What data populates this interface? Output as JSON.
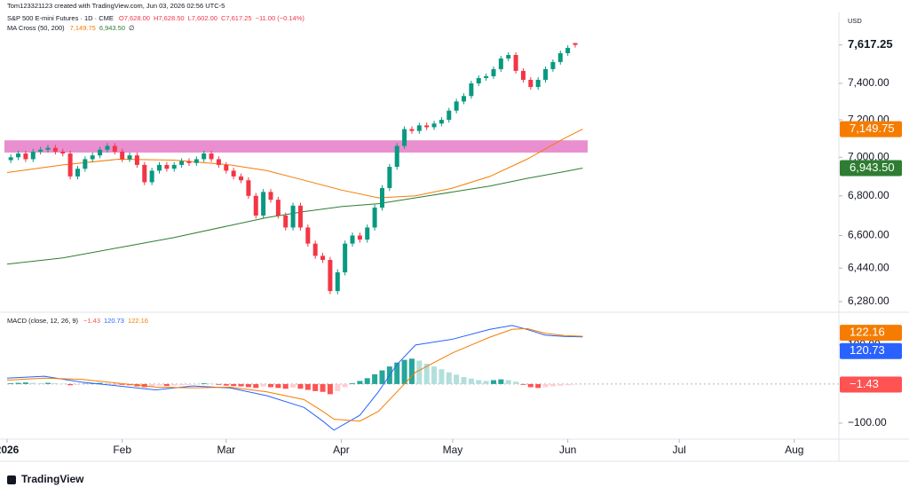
{
  "header": {
    "credit": "Tom123321123 created with TradingView.com, Jun 03, 2026 02:56 UTC-5",
    "symbol": "S&P 500 E-mini Futures · 1D · CME",
    "ohlc": [
      "O7,628.00",
      "H7,628.50",
      "L7,602.00",
      "C7,617.25",
      "−11.00 (−0.14%)"
    ],
    "logo": "TradingView"
  },
  "chart_data": [
    {
      "type": "candlestick",
      "currency": "USD",
      "log_scale": true,
      "xlim": [
        0,
        224
      ],
      "xticks": [
        {
          "value": 0,
          "label": "2026"
        },
        {
          "value": 31,
          "label": "Feb"
        },
        {
          "value": 59,
          "label": "Mar"
        },
        {
          "value": 90,
          "label": "Apr"
        },
        {
          "value": 120,
          "label": "May"
        },
        {
          "value": 151,
          "label": "Jun"
        },
        {
          "value": 181,
          "label": "Jul"
        },
        {
          "value": 212,
          "label": "Aug"
        }
      ],
      "ylim": [
        6230,
        7879
      ],
      "yticks": [
        {
          "value": 7617.25,
          "label": "7,617.25"
        },
        {
          "value": 7400,
          "label": "7,400.00"
        },
        {
          "value": 7200,
          "label": "7,200.00"
        },
        {
          "value": 7000,
          "label": "7,000.00"
        },
        {
          "value": 6800,
          "label": "6,800.00"
        },
        {
          "value": 6600,
          "label": "6,600.00"
        },
        {
          "value": 6440,
          "label": "6,440.00"
        },
        {
          "value": 6280,
          "label": "6,280.00"
        }
      ],
      "zone": {
        "from": 7025,
        "to": 7090,
        "color": "#e98fcf"
      },
      "candles": {
        "up_color": "#089981",
        "down_color": "#f23645",
        "x": [
          1,
          3,
          5,
          7,
          9,
          11,
          13,
          15,
          17,
          19,
          21,
          23,
          25,
          27,
          29,
          31,
          33,
          35,
          37,
          39,
          41,
          43,
          45,
          47,
          49,
          51,
          53,
          55,
          57,
          59,
          61,
          63,
          65,
          67,
          69,
          71,
          73,
          75,
          77,
          79,
          81,
          83,
          85,
          87,
          89,
          91,
          93,
          95,
          97,
          99,
          101,
          103,
          105,
          107,
          109,
          111,
          113,
          115,
          117,
          119,
          121,
          123,
          125,
          127,
          129,
          131,
          133,
          135,
          137,
          139,
          141,
          143,
          145,
          147,
          149,
          151,
          153
        ],
        "open": [
          6985,
          7000,
          7020,
          6990,
          7030,
          7040,
          7050,
          7030,
          7020,
          6900,
          6940,
          6990,
          7010,
          7040,
          7060,
          7030,
          6990,
          7010,
          6960,
          6870,
          6930,
          6960,
          6940,
          6960,
          6980,
          6970,
          6990,
          7020,
          6990,
          6960,
          6930,
          6900,
          6880,
          6800,
          6700,
          6820,
          6780,
          6700,
          6640,
          6750,
          6640,
          6560,
          6500,
          6480,
          6330,
          6420,
          6560,
          6600,
          6580,
          6640,
          6740,
          6840,
          6950,
          7060,
          7150,
          7140,
          7170,
          7160,
          7180,
          7200,
          7250,
          7300,
          7330,
          7400,
          7430,
          7440,
          7480,
          7540,
          7560,
          7470,
          7420,
          7380,
          7420,
          7480,
          7520,
          7570,
          7628
        ],
        "high": [
          7015,
          7035,
          7035,
          7045,
          7055,
          7065,
          7065,
          7045,
          7035,
          6955,
          7005,
          7025,
          7055,
          7075,
          7075,
          7045,
          7025,
          7025,
          6975,
          6945,
          6975,
          6975,
          6975,
          6995,
          6995,
          7005,
          7035,
          7035,
          7005,
          6975,
          6945,
          6915,
          6895,
          6815,
          6835,
          6835,
          6795,
          6715,
          6765,
          6765,
          6655,
          6575,
          6515,
          6495,
          6435,
          6575,
          6615,
          6615,
          6655,
          6755,
          6855,
          6965,
          7075,
          7165,
          7165,
          7185,
          7185,
          7195,
          7215,
          7265,
          7315,
          7345,
          7415,
          7445,
          7455,
          7495,
          7555,
          7575,
          7575,
          7485,
          7435,
          7435,
          7495,
          7535,
          7585,
          7615,
          7628.5
        ],
        "low": [
          6970,
          6985,
          6975,
          6975,
          7015,
          7025,
          7015,
          7005,
          6885,
          6885,
          6925,
          6975,
          6995,
          7025,
          7015,
          6975,
          6975,
          6945,
          6855,
          6855,
          6915,
          6925,
          6925,
          6945,
          6955,
          6955,
          6975,
          6975,
          6945,
          6915,
          6885,
          6865,
          6785,
          6685,
          6685,
          6765,
          6685,
          6625,
          6625,
          6625,
          6545,
          6485,
          6465,
          6315,
          6315,
          6405,
          6545,
          6565,
          6565,
          6625,
          6725,
          6825,
          6935,
          7045,
          7125,
          7125,
          7145,
          7145,
          7165,
          7185,
          7235,
          7285,
          7315,
          7385,
          7415,
          7425,
          7465,
          7525,
          7455,
          7405,
          7365,
          7365,
          7405,
          7465,
          7505,
          7555,
          7602
        ],
        "close": [
          7000,
          7020,
          6990,
          7030,
          7040,
          7050,
          7030,
          7020,
          6900,
          6940,
          6990,
          7010,
          7040,
          7060,
          7030,
          6990,
          7010,
          6960,
          6870,
          6930,
          6960,
          6940,
          6960,
          6980,
          6970,
          6990,
          7020,
          6990,
          6960,
          6930,
          6900,
          6880,
          6800,
          6700,
          6820,
          6780,
          6700,
          6640,
          6750,
          6640,
          6560,
          6500,
          6480,
          6330,
          6420,
          6560,
          6600,
          6580,
          6640,
          6740,
          6840,
          6950,
          7060,
          7150,
          7140,
          7170,
          7160,
          7180,
          7200,
          7250,
          7300,
          7330,
          7400,
          7430,
          7440,
          7480,
          7540,
          7560,
          7470,
          7420,
          7380,
          7420,
          7480,
          7520,
          7570,
          7600,
          7617.25
        ]
      },
      "indicator": "MA Cross (50, 200)",
      "indicator_mark": "∅",
      "series": [
        {
          "color": "#f57c00",
          "x": [
            0,
            15,
            30,
            45,
            60,
            70,
            80,
            90,
            100,
            110,
            120,
            130,
            140,
            150,
            155
          ],
          "values": [
            6920,
            6960,
            6990,
            6985,
            6960,
            6930,
            6880,
            6830,
            6790,
            6800,
            6840,
            6900,
            6990,
            7100,
            7149.75
          ],
          "last": {
            "value": 7149.75,
            "label": "7,149.75"
          }
        },
        {
          "color": "#2e7d32",
          "x": [
            0,
            15,
            30,
            45,
            60,
            70,
            80,
            90,
            100,
            110,
            120,
            130,
            140,
            150,
            155
          ],
          "values": [
            6460,
            6490,
            6540,
            6590,
            6650,
            6690,
            6720,
            6745,
            6760,
            6790,
            6820,
            6850,
            6890,
            6925,
            6943.5
          ],
          "last": {
            "value": 6943.5,
            "label": "6,943.50"
          }
        }
      ]
    },
    {
      "type": "macd",
      "title": "MACD (close, 12, 26, 9)",
      "xlim": [
        0,
        224
      ],
      "ylim": [
        -141,
        177
      ],
      "yticks": [
        {
          "value": 100,
          "label": "100.00"
        },
        {
          "value": -100,
          "label": "−100.00"
        }
      ],
      "histogram": {
        "colors": {
          "up_strong": "#26a69a",
          "up_weak": "#b2dfdb",
          "down_strong": "#ff5252",
          "down_weak": "#ffcdd2"
        },
        "x": [
          1,
          3,
          5,
          7,
          9,
          11,
          13,
          15,
          17,
          19,
          21,
          23,
          25,
          27,
          29,
          31,
          33,
          35,
          37,
          39,
          41,
          43,
          45,
          47,
          49,
          51,
          53,
          55,
          57,
          59,
          61,
          63,
          65,
          67,
          69,
          71,
          73,
          75,
          77,
          79,
          81,
          83,
          85,
          87,
          89,
          91,
          93,
          95,
          97,
          99,
          101,
          103,
          105,
          107,
          109,
          111,
          113,
          115,
          117,
          119,
          121,
          123,
          125,
          127,
          129,
          131,
          133,
          135,
          137,
          139,
          141,
          143,
          145,
          147,
          149,
          151,
          153
        ],
        "values": [
          2,
          3,
          4,
          3,
          2,
          3,
          2,
          1,
          -3,
          -2,
          1,
          2,
          3,
          2,
          -1,
          -2,
          -3,
          -6,
          -8,
          -6,
          -4,
          -5,
          -4,
          -3,
          -2,
          -1,
          2,
          1,
          -2,
          -4,
          -5,
          -6,
          -8,
          -10,
          -6,
          -8,
          -10,
          -12,
          -9,
          -12,
          -15,
          -18,
          -20,
          -26,
          -18,
          -8,
          2,
          8,
          15,
          25,
          35,
          45,
          55,
          62,
          65,
          60,
          52,
          45,
          38,
          30,
          24,
          18,
          14,
          10,
          8,
          10,
          12,
          10,
          6,
          -2,
          -8,
          -10,
          -8,
          -6,
          -4,
          -3,
          -1.43
        ],
        "last": {
          "value": -1.43,
          "label": "−1.43"
        }
      },
      "series": [
        {
          "color": "#2962ff",
          "x": [
            0,
            10,
            20,
            30,
            40,
            50,
            60,
            70,
            80,
            85,
            88,
            95,
            100,
            105,
            110,
            120,
            130,
            136,
            140,
            145,
            150,
            155
          ],
          "values": [
            15,
            20,
            5,
            -5,
            -15,
            -5,
            -10,
            -30,
            -60,
            -95,
            -118,
            -80,
            -20,
            50,
            100,
            115,
            140,
            150,
            140,
            125,
            122,
            120.73
          ],
          "last": {
            "value": 120.73,
            "label": "120.73"
          }
        },
        {
          "color": "#f57c00",
          "x": [
            0,
            10,
            20,
            30,
            40,
            50,
            60,
            70,
            80,
            85,
            88,
            95,
            100,
            105,
            110,
            120,
            130,
            136,
            140,
            145,
            150,
            155
          ],
          "values": [
            10,
            15,
            12,
            2,
            -8,
            -10,
            -8,
            -20,
            -40,
            -70,
            -90,
            -95,
            -70,
            -20,
            30,
            80,
            120,
            140,
            142,
            130,
            124,
            122.16
          ],
          "last": {
            "value": 122.16,
            "label": "122.16"
          }
        }
      ]
    }
  ]
}
